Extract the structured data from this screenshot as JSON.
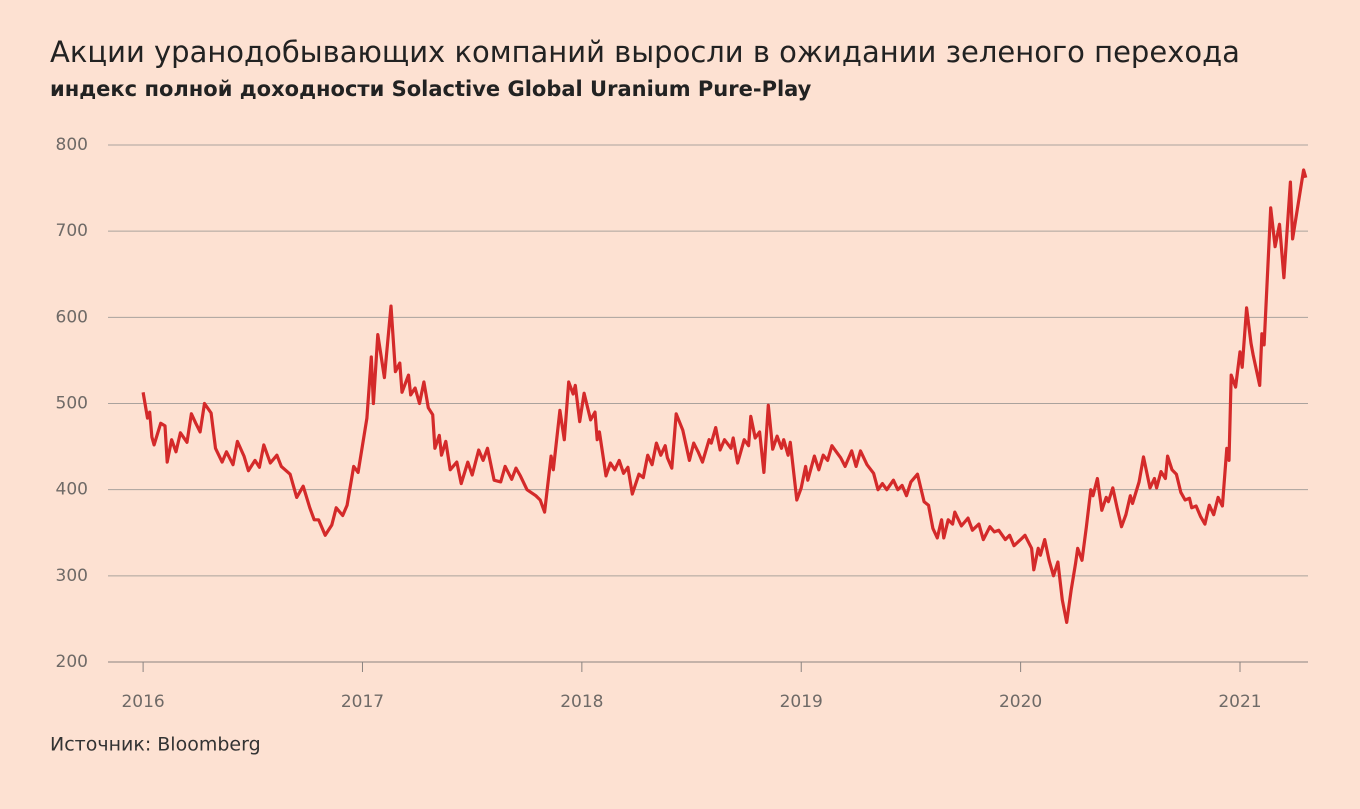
{
  "chart_data": {
    "type": "line",
    "title": "Акции уранодобывающих компаний выросли в ожидании зеленого перехода",
    "subtitle": "индекс полной доходности Solactive Global Uranium Pure-Play",
    "source": "Источник: Bloomberg",
    "xlim": [
      2015.84,
      2021.31
    ],
    "xticks": [
      2016,
      2017,
      2018,
      2019,
      2020,
      2021
    ],
    "ylim": [
      200,
      800
    ],
    "yticks": [
      200,
      300,
      400,
      500,
      600,
      700,
      800
    ],
    "grid": true,
    "series": [
      {
        "color": "#d42a2a",
        "x": [
          2016.0,
          2016.02,
          2016.03,
          2016.04,
          2016.05,
          2016.08,
          2016.1,
          2016.11,
          2016.13,
          2016.15,
          2016.17,
          2016.2,
          2016.22,
          2016.24,
          2016.26,
          2016.28,
          2016.31,
          2016.33,
          2016.36,
          2016.38,
          2016.41,
          2016.43,
          2016.46,
          2016.48,
          2016.51,
          2016.53,
          2016.55,
          2016.58,
          2016.61,
          2016.63,
          2016.67,
          2016.7,
          2016.73,
          2016.76,
          2016.78,
          2016.8,
          2016.83,
          2016.86,
          2016.88,
          2016.91,
          2016.93,
          2016.96,
          2016.98,
          2017.02,
          2017.04,
          2017.05,
          2017.07,
          2017.1,
          2017.13,
          2017.15,
          2017.17,
          2017.18,
          2017.21,
          2017.22,
          2017.24,
          2017.26,
          2017.28,
          2017.3,
          2017.32,
          2017.33,
          2017.35,
          2017.36,
          2017.38,
          2017.4,
          2017.43,
          2017.45,
          2017.48,
          2017.5,
          2017.53,
          2017.55,
          2017.57,
          2017.6,
          2017.63,
          2017.65,
          2017.68,
          2017.7,
          2017.72,
          2017.75,
          2017.79,
          2017.81,
          2017.83,
          2017.86,
          2017.87,
          2017.9,
          2017.92,
          2017.94,
          2017.96,
          2017.97,
          2017.99,
          2018.01,
          2018.04,
          2018.06,
          2018.07,
          2018.08,
          2018.11,
          2018.13,
          2018.15,
          2018.17,
          2018.19,
          2018.21,
          2018.23,
          2018.26,
          2018.28,
          2018.3,
          2018.32,
          2018.34,
          2018.36,
          2018.38,
          2018.39,
          2018.41,
          2018.43,
          2018.46,
          2018.49,
          2018.51,
          2018.53,
          2018.55,
          2018.58,
          2018.59,
          2018.61,
          2018.63,
          2018.65,
          2018.68,
          2018.69,
          2018.71,
          2018.74,
          2018.76,
          2018.77,
          2018.79,
          2018.81,
          2018.83,
          2018.85,
          2018.87,
          2018.89,
          2018.91,
          2018.92,
          2018.94,
          2018.95,
          2018.98,
          2019.0,
          2019.02,
          2019.03,
          2019.06,
          2019.08,
          2019.1,
          2019.12,
          2019.14,
          2019.16,
          2019.18,
          2019.2,
          2019.23,
          2019.25,
          2019.27,
          2019.3,
          2019.33,
          2019.35,
          2019.37,
          2019.39,
          2019.42,
          2019.44,
          2019.46,
          2019.48,
          2019.5,
          2019.53,
          2019.56,
          2019.58,
          2019.6,
          2019.62,
          2019.64,
          2019.65,
          2019.67,
          2019.69,
          2019.7,
          2019.73,
          2019.76,
          2019.78,
          2019.81,
          2019.83,
          2019.86,
          2019.88,
          2019.9,
          2019.93,
          2019.95,
          2019.97,
          2020.0,
          2020.02,
          2020.05,
          2020.06,
          2020.08,
          2020.09,
          2020.11,
          2020.13,
          2020.15,
          2020.17,
          2020.19,
          2020.21,
          2020.23,
          2020.25,
          2020.26,
          2020.28,
          2020.3,
          2020.32,
          2020.33,
          2020.35,
          2020.37,
          2020.39,
          2020.4,
          2020.42,
          2020.44,
          2020.46,
          2020.48,
          2020.5,
          2020.51,
          2020.54,
          2020.56,
          2020.59,
          2020.61,
          2020.62,
          2020.64,
          2020.66,
          2020.67,
          2020.69,
          2020.71,
          2020.73,
          2020.75,
          2020.77,
          2020.78,
          2020.8,
          2020.82,
          2020.84,
          2020.86,
          2020.88,
          2020.9,
          2020.92,
          2020.94,
          2020.95,
          2020.96,
          2020.98,
          2021.0,
          2021.01,
          2021.03,
          2021.05,
          2021.06,
          2021.09,
          2021.1,
          2021.11,
          2021.14,
          2021.16,
          2021.18,
          2021.2,
          2021.23,
          2021.24,
          2021.29,
          2021.3
        ],
        "values": [
          513,
          483,
          490,
          461,
          452,
          477,
          474,
          432,
          458,
          444,
          466,
          455,
          488,
          477,
          467,
          500,
          489,
          448,
          432,
          444,
          429,
          456,
          439,
          422,
          434,
          426,
          452,
          431,
          440,
          427,
          418,
          391,
          404,
          379,
          365,
          365,
          347,
          359,
          379,
          370,
          382,
          427,
          420,
          483,
          554,
          500,
          580,
          530,
          613,
          537,
          547,
          513,
          533,
          510,
          518,
          500,
          525,
          495,
          487,
          448,
          463,
          440,
          456,
          423,
          432,
          407,
          432,
          417,
          446,
          434,
          448,
          411,
          409,
          427,
          412,
          425,
          416,
          400,
          393,
          388,
          374,
          439,
          423,
          492,
          458,
          525,
          511,
          521,
          479,
          512,
          481,
          490,
          458,
          467,
          416,
          431,
          423,
          434,
          419,
          426,
          395,
          418,
          414,
          440,
          429,
          454,
          440,
          451,
          437,
          425,
          488,
          469,
          434,
          454,
          444,
          432,
          458,
          454,
          472,
          446,
          458,
          448,
          460,
          431,
          458,
          451,
          485,
          460,
          467,
          420,
          498,
          447,
          462,
          448,
          458,
          440,
          455,
          388,
          402,
          427,
          411,
          439,
          423,
          440,
          434,
          451,
          444,
          437,
          427,
          445,
          427,
          445,
          429,
          419,
          400,
          407,
          400,
          411,
          400,
          405,
          393,
          409,
          418,
          386,
          382,
          355,
          344,
          365,
          344,
          365,
          360,
          374,
          358,
          367,
          353,
          360,
          342,
          357,
          351,
          353,
          342,
          347,
          335,
          342,
          347,
          332,
          307,
          332,
          324,
          342,
          318,
          300,
          316,
          272,
          246,
          283,
          314,
          332,
          318,
          357,
          400,
          393,
          413,
          376,
          391,
          386,
          402,
          379,
          357,
          371,
          393,
          384,
          409,
          438,
          402,
          413,
          402,
          421,
          413,
          439,
          423,
          418,
          397,
          388,
          390,
          379,
          381,
          369,
          360,
          382,
          371,
          391,
          381,
          448,
          434,
          533,
          519,
          560,
          542,
          611,
          570,
          556,
          521,
          581,
          568,
          727,
          682,
          708,
          646,
          757,
          691,
          771,
          762
        ]
      }
    ]
  }
}
